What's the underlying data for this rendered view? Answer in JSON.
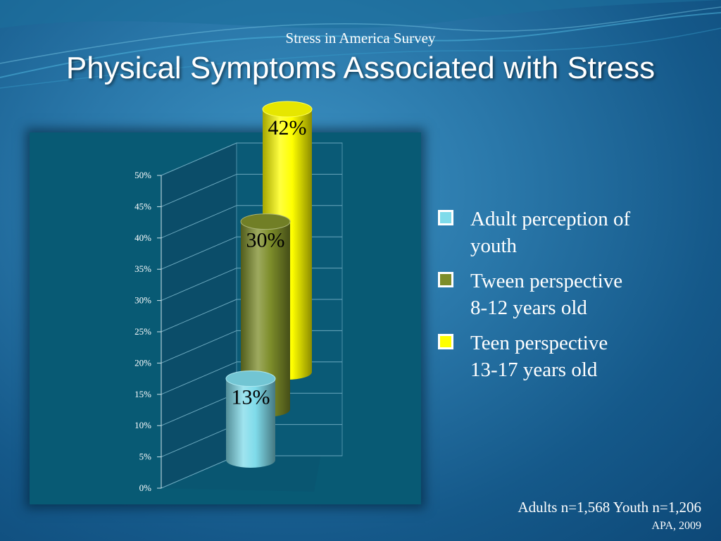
{
  "slide": {
    "subtitle": "Stress in America Survey",
    "title": "Physical Symptoms Associated with Stress",
    "sample": "Adults n=1,568 Youth n=1,206",
    "source": "APA, 2009"
  },
  "chart_data": {
    "type": "bar",
    "style": "3d-cylinder",
    "title": "",
    "xlabel": "",
    "ylabel": "",
    "ylim": [
      0,
      50
    ],
    "yticks": [
      "0%",
      "5%",
      "10%",
      "15%",
      "20%",
      "25%",
      "30%",
      "35%",
      "40%",
      "45%",
      "50%"
    ],
    "grid": true,
    "legend_position": "right",
    "series": [
      {
        "name": "Adult perception of youth",
        "label_lines": [
          "Adult perception of",
          "youth"
        ],
        "value": 13,
        "data_label": "13%",
        "color": "#7fdbea"
      },
      {
        "name": "Tween perspective 8-12 years old",
        "label_lines": [
          "Tween perspective",
          "8-12 years old"
        ],
        "value": 30,
        "data_label": "30%",
        "color": "#7d8d2a"
      },
      {
        "name": "Teen perspective 13-17 years old",
        "label_lines": [
          "Teen perspective",
          "13-17 years old"
        ],
        "value": 42,
        "data_label": "42%",
        "color": "#ffff00"
      }
    ]
  }
}
